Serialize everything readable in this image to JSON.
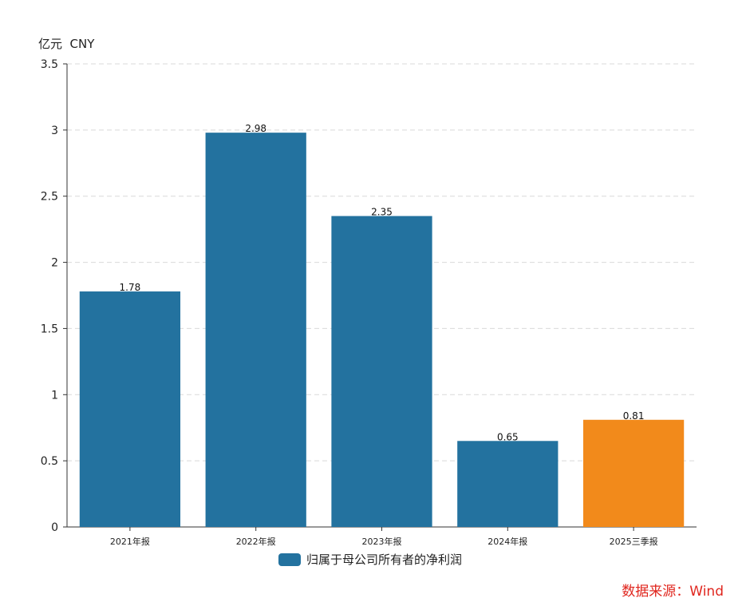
{
  "unit_label": "亿元  CNY",
  "source": "数据来源：Wind",
  "chart_data": {
    "type": "bar",
    "categories": [
      "2021年报",
      "2022年报",
      "2023年报",
      "2024年报",
      "2025三季报"
    ],
    "series": [
      {
        "name": "归属于母公司所有者的净利润",
        "values": [
          1.78,
          2.98,
          2.35,
          0.65,
          0.81
        ]
      }
    ],
    "value_labels": [
      "1.78",
      "2.98",
      "2.35",
      "0.65",
      "0.81"
    ],
    "ylim": [
      0,
      3.5
    ],
    "yticks": [
      0,
      0.5,
      1,
      1.5,
      2,
      2.5,
      3,
      3.5
    ],
    "ytick_labels": [
      "0",
      "0.5",
      "1",
      "1.5",
      "2",
      "2.5",
      "3",
      "3.5"
    ],
    "grid": true,
    "legend_position": "bottom-center",
    "colors": {
      "default_bar": "#23729f",
      "highlight_bar": "#f28a1b"
    },
    "highlight_index": 4
  }
}
